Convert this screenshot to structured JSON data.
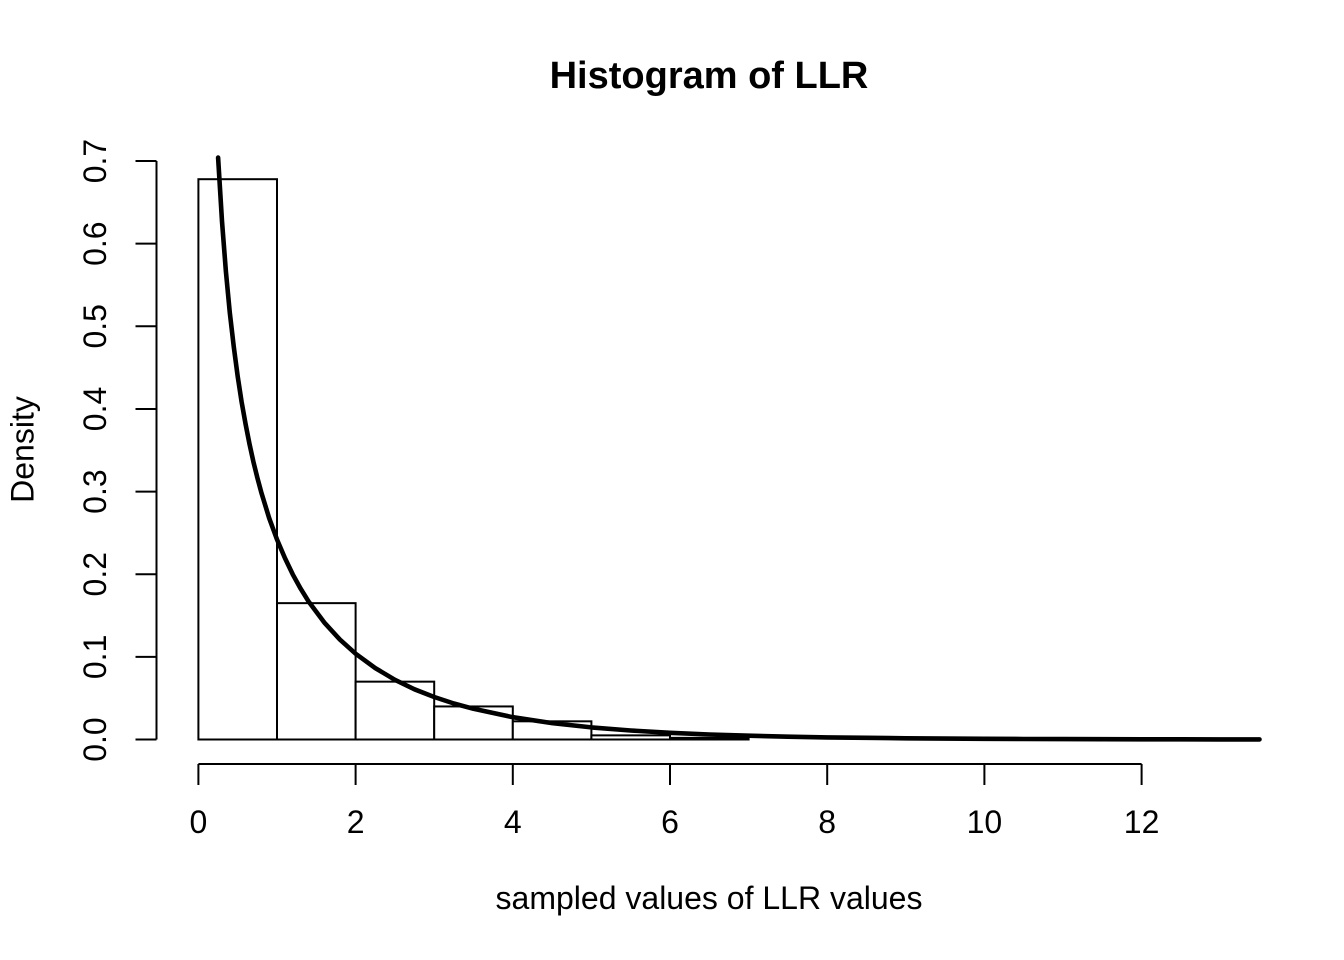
{
  "title": "Histogram of LLR",
  "chart_data": {
    "type": "bar",
    "subtype": "histogram-with-density-curve",
    "title": "Histogram of LLR",
    "xlabel": "sampled values of LLR values",
    "ylabel": "Density",
    "xlim": [
      0,
      13.55
    ],
    "ylim": [
      0.0,
      0.7
    ],
    "grid": "off",
    "legend": "none",
    "x_tick_values": [
      0,
      2,
      4,
      6,
      8,
      10,
      12
    ],
    "x_tick_labels": [
      "0",
      "2",
      "4",
      "6",
      "8",
      "10",
      "12"
    ],
    "y_tick_values": [
      0.0,
      0.1,
      0.2,
      0.3,
      0.4,
      0.5,
      0.6,
      0.7
    ],
    "y_tick_labels": [
      "0.0",
      "0.1",
      "0.2",
      "0.3",
      "0.4",
      "0.5",
      "0.6",
      "0.7"
    ],
    "bins": [
      {
        "range": [
          0,
          1
        ],
        "density": 0.678
      },
      {
        "range": [
          1,
          2
        ],
        "density": 0.165
      },
      {
        "range": [
          2,
          3
        ],
        "density": 0.07
      },
      {
        "range": [
          3,
          4
        ],
        "density": 0.04
      },
      {
        "range": [
          4,
          5
        ],
        "density": 0.022
      },
      {
        "range": [
          5,
          6
        ],
        "density": 0.005
      },
      {
        "range": [
          6,
          7
        ],
        "density": 0.002
      }
    ],
    "curve": {
      "name": "chi-squared-density-df-1",
      "points": [
        [
          0.25,
          0.7041
        ],
        [
          0.3,
          0.6271
        ],
        [
          0.35,
          0.5663
        ],
        [
          0.4,
          0.5164
        ],
        [
          0.45,
          0.4749
        ],
        [
          0.5,
          0.4394
        ],
        [
          0.55,
          0.4085
        ],
        [
          0.6,
          0.3815
        ],
        [
          0.65,
          0.3576
        ],
        [
          0.7,
          0.336
        ],
        [
          0.75,
          0.3166
        ],
        [
          0.8,
          0.299
        ],
        [
          0.9,
          0.2681
        ],
        [
          1.0,
          0.242
        ],
        [
          1.1,
          0.2196
        ],
        [
          1.2,
          0.1999
        ],
        [
          1.3,
          0.1826
        ],
        [
          1.4,
          0.1674
        ],
        [
          1.6,
          0.1417
        ],
        [
          1.8,
          0.1209
        ],
        [
          2.0,
          0.1038
        ],
        [
          2.25,
          0.0864
        ],
        [
          2.5,
          0.0723
        ],
        [
          2.75,
          0.0608
        ],
        [
          3.0,
          0.0514
        ],
        [
          3.25,
          0.0436
        ],
        [
          3.5,
          0.0371
        ],
        [
          4.0,
          0.027
        ],
        [
          4.5,
          0.0198
        ],
        [
          5.0,
          0.0146
        ],
        [
          5.5,
          0.0109
        ],
        [
          6.0,
          0.0081
        ],
        [
          6.5,
          0.0061
        ],
        [
          7.0,
          0.0046
        ],
        [
          7.5,
          0.0034
        ],
        [
          8.0,
          0.0026
        ],
        [
          8.5,
          0.002
        ],
        [
          9.0,
          0.0015
        ],
        [
          9.5,
          0.0011
        ],
        [
          10.0,
          0.00085
        ],
        [
          10.5,
          0.00065
        ],
        [
          11.0,
          0.00049
        ],
        [
          11.5,
          0.00038
        ],
        [
          12.0,
          0.00029
        ],
        [
          12.5,
          0.00022
        ],
        [
          13.0,
          0.00017
        ],
        [
          13.5,
          0.00013
        ]
      ]
    },
    "colors": {
      "foreground": "#000000",
      "background": "#ffffff",
      "bar_fill": "#ffffff",
      "bar_stroke": "#000000",
      "curve_stroke": "#000000"
    }
  }
}
